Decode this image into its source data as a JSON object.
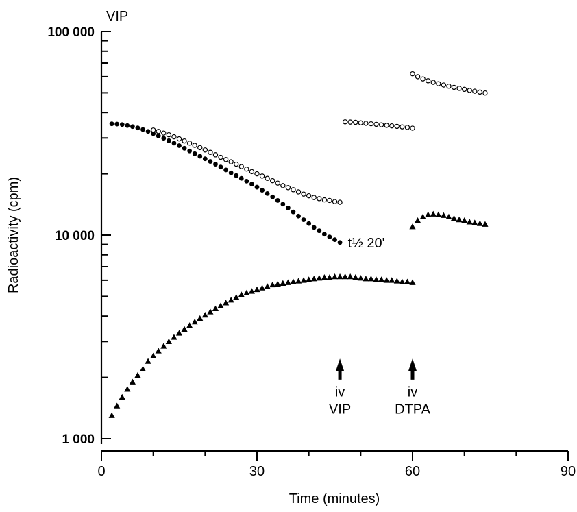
{
  "chart_data": {
    "type": "scatter",
    "corner_label": "VIP",
    "xlabel": "Time (minutes)",
    "ylabel": "Radioactivity (cpm)",
    "xlim": [
      0,
      90
    ],
    "ylim": [
      1000,
      100000
    ],
    "yscale": "log",
    "x_ticks": [
      0,
      30,
      60,
      90
    ],
    "x_tick_labels": [
      "0",
      "30",
      "60",
      "90"
    ],
    "y_ticks": [
      1000,
      10000,
      100000
    ],
    "y_tick_labels": [
      "1 000",
      "10 000",
      "100 000"
    ],
    "grid": false,
    "legend": "none",
    "annotations": [
      {
        "text": "t½ 20'",
        "x": 47,
        "y": 9200
      },
      {
        "text": "iv",
        "x": 46,
        "y": 1700
      },
      {
        "text": "VIP",
        "x": 46,
        "y": 1400
      },
      {
        "text": "iv",
        "x": 60,
        "y": 1700
      },
      {
        "text": "DTPA",
        "x": 60,
        "y": 1400
      }
    ],
    "arrows": [
      {
        "x": 46,
        "y_from": 1950,
        "y_to": 2400
      },
      {
        "x": 60,
        "y_from": 1950,
        "y_to": 2400
      }
    ],
    "series": [
      {
        "marker": "circle-filled",
        "segments": [
          {
            "x_start": 2,
            "x_end": 46,
            "step": 1,
            "y": [
              35200,
              35100,
              34900,
              34500,
              34100,
              33600,
              33000,
              32300,
              31500,
              30700,
              29900,
              29100,
              28300,
              27500,
              26700,
              25900,
              25100,
              24400,
              23700,
              23000,
              22300,
              21600,
              20900,
              20200,
              19600,
              19000,
              18400,
              17800,
              17200,
              16600,
              16000,
              15400,
              14800,
              14200,
              13600,
              13000,
              12400,
              11900,
              11400,
              10900,
              10500,
              10100,
              9800,
              9500,
              9200
            ]
          }
        ]
      },
      {
        "marker": "circle-open",
        "segments": [
          {
            "x_start": 10,
            "x_end": 46,
            "step": 1,
            "y": [
              32800,
              32300,
              31700,
              31100,
              30400,
              29700,
              29000,
              28300,
              27600,
              26900,
              26200,
              25500,
              24800,
              24100,
              23500,
              22900,
              22300,
              21700,
              21100,
              20500,
              20000,
              19500,
              19000,
              18500,
              18000,
              17500,
              17100,
              16700,
              16300,
              15900,
              15600,
              15300,
              15100,
              14900,
              14800,
              14600,
              14500
            ]
          },
          {
            "x_start": 47,
            "x_end": 60,
            "step": 1,
            "y": [
              36000,
              35900,
              35800,
              35600,
              35400,
              35200,
              35000,
              34800,
              34600,
              34400,
              34200,
              34000,
              33800,
              33500
            ]
          },
          {
            "x_start": 60,
            "x_end": 74,
            "step": 1,
            "y": [
              62000,
              60000,
              58500,
              57300,
              56300,
              55400,
              54600,
              53900,
              53200,
              52600,
              52000,
              51400,
              50900,
              50400,
              49900
            ]
          }
        ]
      },
      {
        "marker": "triangle-filled",
        "segments": [
          {
            "x_start": 2,
            "x_end": 60,
            "step": 1,
            "y": [
              1300,
              1450,
              1600,
              1750,
              1900,
              2050,
              2200,
              2400,
              2550,
              2700,
              2850,
              3000,
              3150,
              3300,
              3450,
              3600,
              3750,
              3900,
              4050,
              4200,
              4350,
              4500,
              4650,
              4800,
              4950,
              5100,
              5200,
              5300,
              5400,
              5500,
              5600,
              5700,
              5750,
              5800,
              5850,
              5900,
              5950,
              6000,
              6050,
              6100,
              6150,
              6200,
              6200,
              6250,
              6250,
              6250,
              6250,
              6200,
              6150,
              6100,
              6100,
              6050,
              6050,
              6000,
              6000,
              5950,
              5900,
              5900,
              5850
            ]
          },
          {
            "x_start": 60,
            "x_end": 74,
            "step": 1,
            "y": [
              11000,
              11800,
              12300,
              12600,
              12700,
              12600,
              12500,
              12300,
              12100,
              11900,
              11800,
              11600,
              11500,
              11400,
              11300
            ]
          }
        ]
      }
    ]
  }
}
